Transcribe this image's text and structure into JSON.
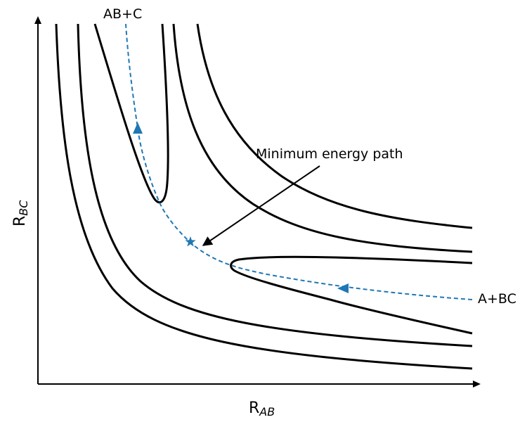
{
  "labels": {
    "x_axis_main": "R",
    "x_axis_sub": "AB",
    "y_axis_main": "R",
    "y_axis_sub": "BC",
    "reactants": "A+BC",
    "products": "AB+C",
    "annotation": "Minimum energy path"
  },
  "colors": {
    "contour": "#000000",
    "path": "#1f77b4",
    "axis": "#000000"
  },
  "markers": {
    "transition_state": "star",
    "path_direction": "triangle"
  }
}
